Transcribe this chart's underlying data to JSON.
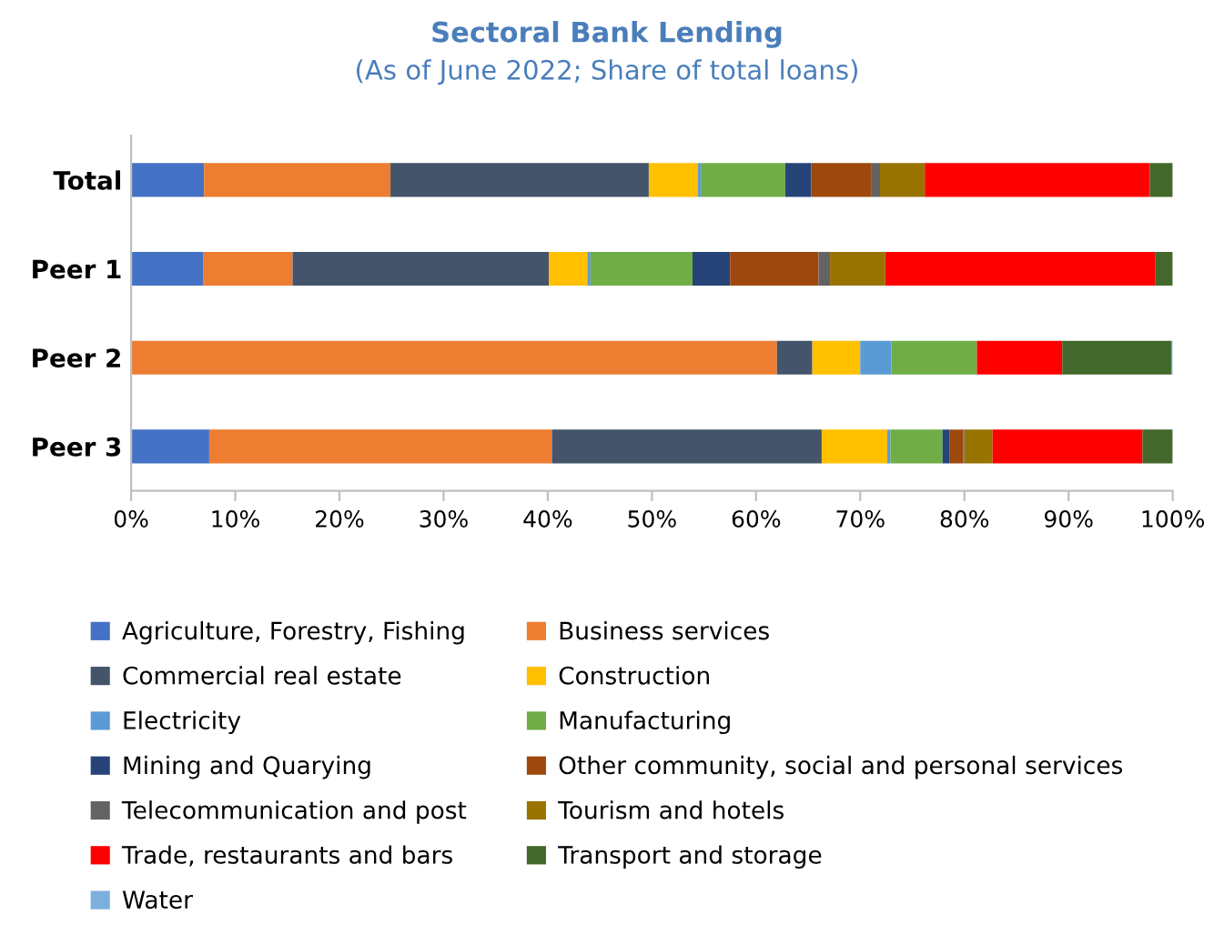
{
  "chart_data": {
    "type": "bar",
    "orientation": "horizontal",
    "stacked": true,
    "title": "Sectoral Bank Lending",
    "subtitle": "(As of June 2022; Share of total loans)",
    "categories": [
      "Total",
      "Peer 1",
      "Peer 2",
      "Peer 3"
    ],
    "xlim": [
      0,
      100
    ],
    "xticks": [
      {
        "value": 0,
        "label": "0%"
      },
      {
        "value": 10,
        "label": "10%"
      },
      {
        "value": 20,
        "label": "20%"
      },
      {
        "value": 30,
        "label": "30%"
      },
      {
        "value": 40,
        "label": "40%"
      },
      {
        "value": 50,
        "label": "50%"
      },
      {
        "value": 60,
        "label": "60%"
      },
      {
        "value": 70,
        "label": "70%"
      },
      {
        "value": 80,
        "label": "80%"
      },
      {
        "value": 90,
        "label": "90%"
      },
      {
        "value": 100,
        "label": "100%"
      }
    ],
    "grid": false,
    "legend": "bottom",
    "series": [
      {
        "name": "Agriculture, Forestry, Fishing",
        "color": "#4472c4",
        "values": [
          7.0,
          6.9,
          0,
          7.5
        ]
      },
      {
        "name": "Business services",
        "color": "#ed7d31",
        "values": [
          17.9,
          8.6,
          62.0,
          32.9
        ]
      },
      {
        "name": "Commercial real estate",
        "color": "#44546a",
        "values": [
          24.8,
          24.6,
          3.4,
          25.9
        ]
      },
      {
        "name": "Construction",
        "color": "#ffc000",
        "values": [
          4.7,
          3.7,
          4.6,
          6.3
        ]
      },
      {
        "name": "Electricity",
        "color": "#5b9bd5",
        "values": [
          0.3,
          0.3,
          3.0,
          0.3
        ]
      },
      {
        "name": "Manufacturing",
        "color": "#70ad47",
        "values": [
          8.1,
          9.8,
          8.2,
          5.0
        ]
      },
      {
        "name": "Mining and Quarying",
        "color": "#264478",
        "values": [
          2.5,
          3.6,
          0,
          0.7
        ]
      },
      {
        "name": "Other community, social and personal services",
        "color": "#9e480e",
        "values": [
          5.8,
          8.5,
          0,
          1.3
        ]
      },
      {
        "name": "Telecommunication and post",
        "color": "#636363",
        "values": [
          0.8,
          1.1,
          0,
          0.1
        ]
      },
      {
        "name": "Tourism and hotels",
        "color": "#997300",
        "values": [
          4.3,
          5.3,
          0,
          2.7
        ]
      },
      {
        "name": "Trade, restaurants and bars",
        "color": "#ff0000",
        "values": [
          21.6,
          25.9,
          8.2,
          14.4
        ]
      },
      {
        "name": "Transport and storage",
        "color": "#43682b",
        "values": [
          2.2,
          1.7,
          10.5,
          2.9
        ]
      },
      {
        "name": "Water",
        "color": "#7cafdd",
        "values": [
          0,
          0,
          0.1,
          0
        ]
      }
    ]
  }
}
